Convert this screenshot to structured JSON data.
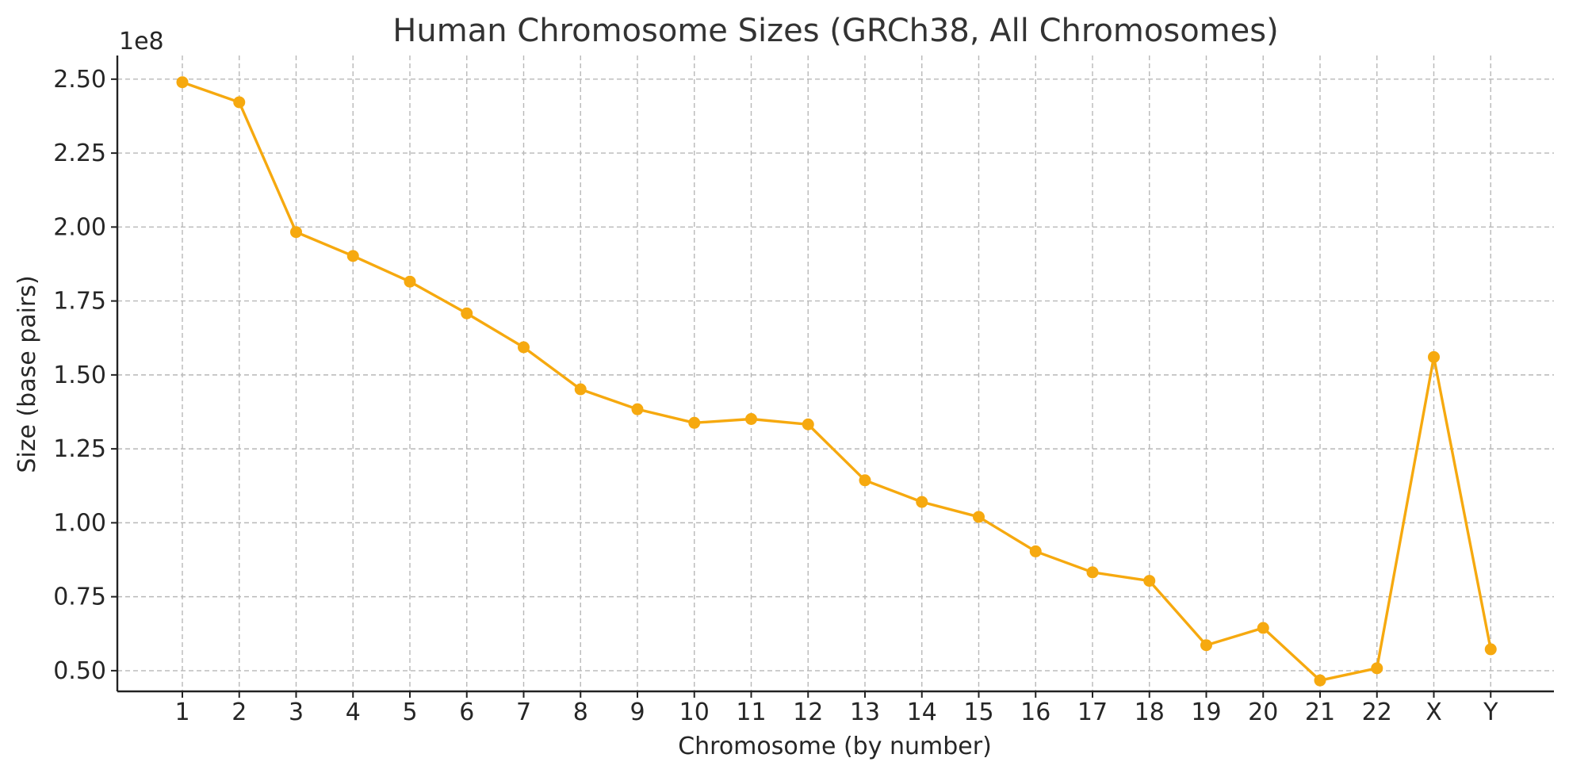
{
  "chart_data": {
    "type": "line",
    "title": "Human Chromosome Sizes (GRCh38, All Chromosomes)",
    "xlabel": "Chromosome (by number)",
    "ylabel": "Size (base pairs)",
    "y_offset_label": "1e8",
    "categories": [
      "1",
      "2",
      "3",
      "4",
      "5",
      "6",
      "7",
      "8",
      "9",
      "10",
      "11",
      "12",
      "13",
      "14",
      "15",
      "16",
      "17",
      "18",
      "19",
      "20",
      "21",
      "22",
      "X",
      "Y"
    ],
    "series": [
      {
        "values": [
          248956422,
          242193529,
          198295559,
          190214555,
          181538259,
          170805979,
          159345973,
          145138636,
          138394717,
          133797422,
          135086622,
          133275309,
          114364328,
          107043718,
          101991189,
          90338345,
          83257441,
          80373285,
          58617616,
          64444167,
          46709983,
          50818468,
          156040895,
          57227415
        ]
      }
    ],
    "y_ticks": [
      0.5,
      0.75,
      1.0,
      1.25,
      1.5,
      1.75,
      2.0,
      2.25,
      2.5
    ],
    "y_tick_labels": [
      "0.50",
      "0.75",
      "1.00",
      "1.25",
      "1.50",
      "1.75",
      "2.00",
      "2.25",
      "2.50"
    ],
    "y_scale": 100000000,
    "ylim": [
      0.43,
      2.58
    ],
    "grid": true,
    "legend": "none",
    "colors": {
      "line": "#f6a90f",
      "grid": "#b8b8b8",
      "axis": "#222222",
      "text": "#262626"
    }
  }
}
